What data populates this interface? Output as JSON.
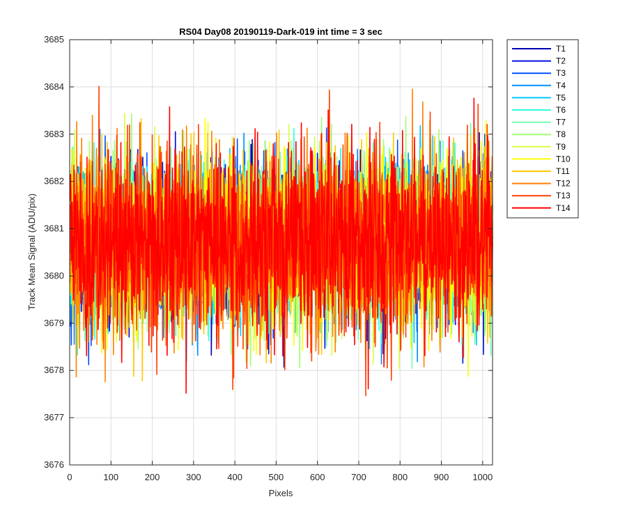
{
  "chart_data": {
    "type": "line",
    "title": "RS04 Day08 20190119-Dark-019 int time = 3 sec",
    "xlabel": "Pixels",
    "ylabel": "Track Mean Signal (ADU/pix)",
    "xlim": [
      0,
      1024
    ],
    "ylim": [
      3676,
      3685
    ],
    "xticks": [
      0,
      100,
      200,
      300,
      400,
      500,
      600,
      700,
      800,
      900,
      1000
    ],
    "yticks": [
      3676,
      3677,
      3678,
      3679,
      3680,
      3681,
      3682,
      3683,
      3684,
      3685
    ],
    "grid": true,
    "legend_position": "outside-top-right",
    "series_mean": 3680.75,
    "series_noise_std": 0.85,
    "series": [
      {
        "name": "T1",
        "color": "#0000b3"
      },
      {
        "name": "T2",
        "color": "#0010e0"
      },
      {
        "name": "T3",
        "color": "#0050ff"
      },
      {
        "name": "T4",
        "color": "#0090ff"
      },
      {
        "name": "T5",
        "color": "#00c8ff"
      },
      {
        "name": "T6",
        "color": "#30ffe0"
      },
      {
        "name": "T7",
        "color": "#70ffb0"
      },
      {
        "name": "T8",
        "color": "#a0ff70"
      },
      {
        "name": "T9",
        "color": "#d8ff40"
      },
      {
        "name": "T10",
        "color": "#ffff00"
      },
      {
        "name": "T11",
        "color": "#ffc800"
      },
      {
        "name": "T12",
        "color": "#ff8000"
      },
      {
        "name": "T13",
        "color": "#ff4000"
      },
      {
        "name": "T14",
        "color": "#ff0000"
      }
    ]
  }
}
